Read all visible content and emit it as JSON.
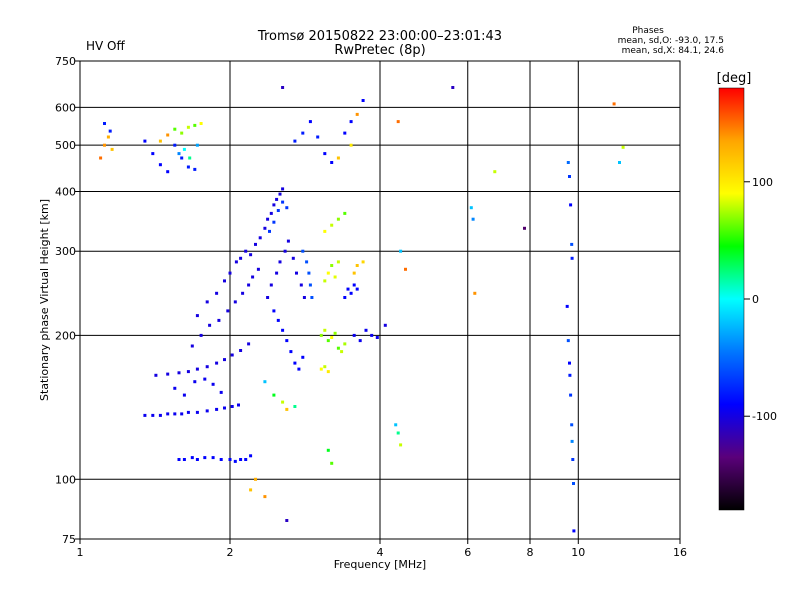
{
  "header": {
    "status": "HV Off",
    "status_color": "#cc0000",
    "title": "Tromsø 20150822 23:00:00–23:01:43",
    "subtitle": "RwPretec (8p)",
    "stats_title": "Phases",
    "stats_o": "mean, sd,O:  -93.0,  17.5",
    "stats_x": "mean, sd,X:   84.1,  24.6"
  },
  "chart_data": {
    "type": "scatter",
    "xlabel": "Frequency [MHz]",
    "ylabel": "Stationary phase Virtual Height [km]",
    "x_scale": "log",
    "y_scale": "log",
    "xlim": [
      1,
      16
    ],
    "ylim": [
      75,
      750
    ],
    "x_ticks": [
      1,
      2,
      4,
      6,
      8,
      10,
      16
    ],
    "x_tick_labels": [
      "1",
      "2",
      "4",
      "6",
      "8",
      "10",
      "16"
    ],
    "y_ticks": [
      75,
      100,
      200,
      300,
      400,
      500,
      600,
      750
    ],
    "y_tick_labels": [
      "75",
      "100",
      "200",
      "300",
      "400",
      "500",
      "600",
      "750"
    ],
    "grid": true,
    "colorbar": {
      "label": "[deg]",
      "range": [
        -180,
        180
      ],
      "ticks": [
        100,
        0,
        -100
      ],
      "tick_labels": [
        "100",
        "0",
        "-100"
      ],
      "colors": [
        "#000000",
        "#5a007a",
        "#0000ff",
        "#0077ff",
        "#00ffff",
        "#00ff00",
        "#ffff00",
        "#ffa500",
        "#ff0000"
      ]
    },
    "series": [
      {
        "points": [
          [
            1.58,
            110,
            -90
          ],
          [
            1.62,
            110,
            -90
          ],
          [
            1.68,
            111,
            -90
          ],
          [
            1.72,
            110,
            -90
          ],
          [
            1.78,
            111,
            -90
          ],
          [
            1.85,
            111,
            -90
          ],
          [
            1.92,
            110,
            -90
          ],
          [
            2.0,
            110,
            -90
          ],
          [
            2.05,
            109,
            -88
          ],
          [
            2.1,
            110,
            -90
          ],
          [
            2.15,
            110,
            -90
          ],
          [
            2.2,
            112,
            -90
          ],
          [
            1.35,
            136,
            -95
          ],
          [
            1.4,
            136,
            -95
          ],
          [
            1.45,
            136,
            -95
          ],
          [
            1.5,
            137,
            -95
          ],
          [
            1.55,
            137,
            -95
          ],
          [
            1.6,
            137,
            -95
          ],
          [
            1.65,
            138,
            -95
          ],
          [
            1.72,
            138,
            -95
          ],
          [
            1.8,
            139,
            -95
          ],
          [
            1.88,
            140,
            -95
          ],
          [
            1.95,
            141,
            -95
          ],
          [
            2.02,
            142,
            -95
          ],
          [
            2.08,
            143,
            -95
          ],
          [
            1.42,
            165,
            -100
          ],
          [
            1.5,
            166,
            -100
          ],
          [
            1.58,
            167,
            -100
          ],
          [
            1.65,
            168,
            -100
          ],
          [
            1.72,
            170,
            -100
          ],
          [
            1.8,
            172,
            -100
          ],
          [
            1.88,
            175,
            -100
          ],
          [
            1.95,
            178,
            -100
          ],
          [
            2.02,
            182,
            -100
          ],
          [
            2.1,
            186,
            -100
          ],
          [
            2.18,
            192,
            -100
          ],
          [
            1.55,
            155,
            -95
          ],
          [
            1.62,
            150,
            -95
          ],
          [
            1.7,
            160,
            -95
          ],
          [
            1.78,
            162,
            -95
          ],
          [
            1.85,
            158,
            -95
          ],
          [
            1.92,
            152,
            -95
          ],
          [
            1.68,
            190,
            -100
          ],
          [
            1.75,
            200,
            -100
          ],
          [
            1.82,
            210,
            -100
          ],
          [
            1.9,
            215,
            -100
          ],
          [
            1.98,
            225,
            -100
          ],
          [
            2.05,
            235,
            -100
          ],
          [
            2.12,
            245,
            -100
          ],
          [
            2.18,
            255,
            -100
          ],
          [
            2.22,
            265,
            -100
          ],
          [
            2.28,
            275,
            -100
          ],
          [
            1.72,
            220,
            -100
          ],
          [
            1.8,
            235,
            -100
          ],
          [
            1.88,
            245,
            -100
          ],
          [
            1.95,
            260,
            -100
          ],
          [
            2.0,
            270,
            -100
          ],
          [
            2.06,
            285,
            -100
          ],
          [
            2.1,
            290,
            -100
          ],
          [
            2.15,
            300,
            -100
          ],
          [
            2.2,
            295,
            -100
          ],
          [
            2.25,
            310,
            -100
          ],
          [
            2.3,
            320,
            -100
          ],
          [
            2.35,
            335,
            -100
          ],
          [
            2.38,
            350,
            -100
          ],
          [
            2.42,
            360,
            -100
          ],
          [
            2.45,
            375,
            -100
          ],
          [
            2.48,
            385,
            -100
          ],
          [
            2.52,
            395,
            -100
          ],
          [
            2.55,
            405,
            -100
          ],
          [
            2.4,
            330,
            -70
          ],
          [
            2.45,
            345,
            -70
          ],
          [
            2.5,
            365,
            -70
          ],
          [
            2.55,
            380,
            -70
          ],
          [
            2.6,
            370,
            -70
          ],
          [
            2.38,
            240,
            -100
          ],
          [
            2.42,
            255,
            -100
          ],
          [
            2.48,
            270,
            -100
          ],
          [
            2.52,
            285,
            -100
          ],
          [
            2.58,
            300,
            -100
          ],
          [
            2.62,
            315,
            -100
          ],
          [
            2.68,
            290,
            -100
          ],
          [
            2.72,
            270,
            -100
          ],
          [
            2.78,
            255,
            -100
          ],
          [
            2.82,
            240,
            -100
          ],
          [
            2.45,
            225,
            -90
          ],
          [
            2.5,
            215,
            -90
          ],
          [
            2.55,
            205,
            -90
          ],
          [
            2.6,
            195,
            -90
          ],
          [
            2.65,
            185,
            -90
          ],
          [
            2.7,
            175,
            -90
          ],
          [
            2.75,
            170,
            -90
          ],
          [
            2.8,
            180,
            -90
          ],
          [
            2.8,
            300,
            -60
          ],
          [
            2.85,
            285,
            -60
          ],
          [
            2.88,
            270,
            -60
          ],
          [
            2.9,
            255,
            -60
          ],
          [
            2.92,
            240,
            -60
          ],
          [
            2.35,
            160,
            -20
          ],
          [
            2.45,
            150,
            40
          ],
          [
            2.55,
            145,
            80
          ],
          [
            2.6,
            140,
            120
          ],
          [
            2.7,
            142,
            20
          ],
          [
            3.05,
            200,
            70
          ],
          [
            3.1,
            205,
            80
          ],
          [
            3.15,
            195,
            60
          ],
          [
            3.2,
            198,
            90
          ],
          [
            3.25,
            202,
            70
          ],
          [
            3.3,
            188,
            60
          ],
          [
            3.35,
            185,
            80
          ],
          [
            3.4,
            192,
            75
          ],
          [
            3.1,
            260,
            80
          ],
          [
            3.15,
            270,
            90
          ],
          [
            3.2,
            280,
            70
          ],
          [
            3.25,
            265,
            85
          ],
          [
            3.3,
            285,
            80
          ],
          [
            3.4,
            240,
            -90
          ],
          [
            3.45,
            250,
            -90
          ],
          [
            3.5,
            245,
            -90
          ],
          [
            3.55,
            255,
            -90
          ],
          [
            3.6,
            250,
            -90
          ],
          [
            3.55,
            270,
            120
          ],
          [
            3.6,
            280,
            120
          ],
          [
            3.7,
            285,
            110
          ],
          [
            3.05,
            170,
            90
          ],
          [
            3.1,
            172,
            80
          ],
          [
            3.15,
            168,
            100
          ],
          [
            3.55,
            200,
            -95
          ],
          [
            3.65,
            195,
            -95
          ],
          [
            3.75,
            205,
            -95
          ],
          [
            3.85,
            200,
            -95
          ],
          [
            3.95,
            198,
            -95
          ],
          [
            4.1,
            210,
            -100
          ],
          [
            3.1,
            330,
            90
          ],
          [
            3.2,
            340,
            80
          ],
          [
            3.3,
            350,
            70
          ],
          [
            3.4,
            360,
            60
          ],
          [
            2.2,
            95,
            120
          ],
          [
            2.35,
            92,
            140
          ],
          [
            2.6,
            82,
            -110
          ],
          [
            2.25,
            100,
            130
          ],
          [
            3.15,
            115,
            40
          ],
          [
            3.2,
            108,
            60
          ],
          [
            1.1,
            470,
            150
          ],
          [
            1.12,
            500,
            140
          ],
          [
            1.14,
            520,
            130
          ],
          [
            1.16,
            490,
            120
          ],
          [
            1.15,
            535,
            -80
          ],
          [
            1.12,
            555,
            -80
          ],
          [
            1.35,
            510,
            -90
          ],
          [
            1.4,
            480,
            -90
          ],
          [
            1.45,
            455,
            -90
          ],
          [
            1.5,
            440,
            -90
          ],
          [
            1.55,
            500,
            -80
          ],
          [
            1.6,
            470,
            -80
          ],
          [
            1.65,
            450,
            -80
          ],
          [
            1.7,
            445,
            -80
          ],
          [
            1.45,
            510,
            120
          ],
          [
            1.5,
            525,
            140
          ],
          [
            1.55,
            540,
            60
          ],
          [
            1.6,
            530,
            70
          ],
          [
            1.65,
            545,
            80
          ],
          [
            1.7,
            550,
            60
          ],
          [
            1.75,
            555,
            90
          ],
          [
            1.58,
            480,
            -40
          ],
          [
            1.62,
            490,
            0
          ],
          [
            1.66,
            470,
            20
          ],
          [
            1.72,
            500,
            -30
          ],
          [
            2.7,
            510,
            -80
          ],
          [
            2.8,
            530,
            -80
          ],
          [
            2.9,
            560,
            -90
          ],
          [
            3.0,
            520,
            -80
          ],
          [
            3.1,
            480,
            -90
          ],
          [
            3.2,
            460,
            -90
          ],
          [
            3.3,
            470,
            120
          ],
          [
            3.4,
            530,
            -90
          ],
          [
            3.5,
            560,
            -90
          ],
          [
            3.6,
            580,
            140
          ],
          [
            3.7,
            620,
            -90
          ],
          [
            3.5,
            500,
            100
          ],
          [
            2.55,
            660,
            -110
          ],
          [
            4.35,
            560,
            150
          ],
          [
            5.6,
            660,
            -110
          ],
          [
            6.8,
            440,
            80
          ],
          [
            6.1,
            370,
            -20
          ],
          [
            6.15,
            350,
            -40
          ],
          [
            6.2,
            245,
            140
          ],
          [
            4.5,
            275,
            150
          ],
          [
            4.4,
            300,
            -20
          ],
          [
            7.8,
            335,
            -140
          ],
          [
            9.55,
            460,
            -50
          ],
          [
            9.6,
            430,
            -70
          ],
          [
            9.65,
            375,
            -90
          ],
          [
            9.7,
            310,
            -60
          ],
          [
            9.72,
            290,
            -80
          ],
          [
            9.5,
            230,
            -90
          ],
          [
            9.55,
            195,
            -60
          ],
          [
            9.6,
            175,
            -90
          ],
          [
            9.62,
            165,
            -80
          ],
          [
            9.65,
            150,
            -70
          ],
          [
            9.7,
            130,
            -60
          ],
          [
            9.72,
            120,
            -40
          ],
          [
            9.75,
            110,
            -70
          ],
          [
            9.78,
            98,
            -60
          ],
          [
            9.8,
            78,
            -90
          ],
          [
            4.3,
            130,
            -20
          ],
          [
            4.35,
            125,
            20
          ],
          [
            4.4,
            118,
            80
          ],
          [
            11.8,
            610,
            150
          ],
          [
            12.3,
            495,
            80
          ],
          [
            12.1,
            460,
            -20
          ]
        ]
      }
    ]
  }
}
